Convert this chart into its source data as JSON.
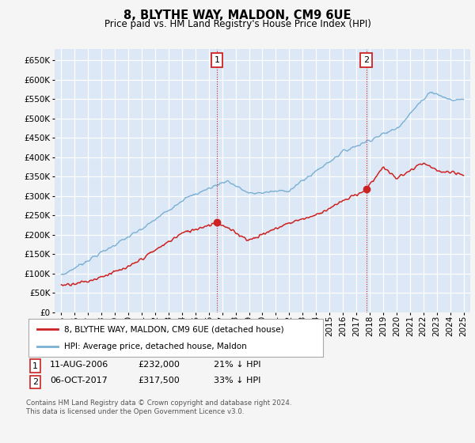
{
  "title": "8, BLYTHE WAY, MALDON, CM9 6UE",
  "subtitle": "Price paid vs. HM Land Registry's House Price Index (HPI)",
  "ylim": [
    0,
    680000
  ],
  "yticks": [
    0,
    50000,
    100000,
    150000,
    200000,
    250000,
    300000,
    350000,
    400000,
    450000,
    500000,
    550000,
    600000,
    650000
  ],
  "xlim_start": 1994.5,
  "xlim_end": 2025.5,
  "fig_bg": "#f5f5f5",
  "plot_bg": "#dce8f5",
  "grid_color": "#ffffff",
  "hpi_color": "#7ab0d4",
  "price_color": "#cc2222",
  "sale1_date": 2006.6,
  "sale1_price": 232000,
  "sale2_date": 2017.75,
  "sale2_price": 317500,
  "legend_label1": "8, BLYTHE WAY, MALDON, CM9 6UE (detached house)",
  "legend_label2": "HPI: Average price, detached house, Maldon",
  "table_row1": [
    "1",
    "11-AUG-2006",
    "£232,000",
    "21% ↓ HPI"
  ],
  "table_row2": [
    "2",
    "06-OCT-2017",
    "£317,500",
    "33% ↓ HPI"
  ],
  "footnote": "Contains HM Land Registry data © Crown copyright and database right 2024.\nThis data is licensed under the Open Government Licence v3.0."
}
